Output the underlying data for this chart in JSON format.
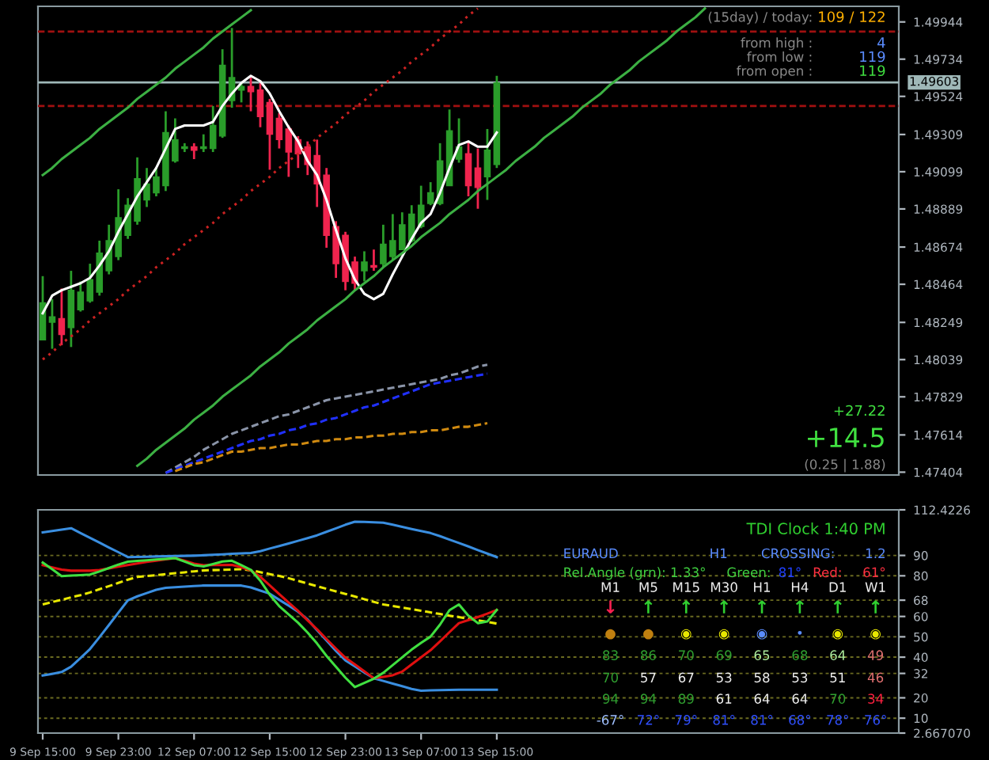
{
  "chart_data": [
    {
      "type": "candlestick",
      "categories": [
        null,
        null,
        null,
        null,
        null,
        null,
        null,
        null,
        null,
        null,
        null,
        null,
        null,
        null,
        null,
        null,
        null,
        null,
        null,
        null,
        null,
        null,
        null,
        null,
        null,
        null,
        null,
        null,
        null,
        null,
        null,
        null,
        null,
        null,
        null,
        null,
        null,
        null,
        null,
        null,
        null,
        null,
        null,
        null,
        null,
        null,
        null,
        null,
        null,
        null,
        null,
        null,
        null,
        null,
        null,
        null,
        null,
        null,
        null,
        null,
        null,
        null,
        null,
        null,
        null,
        null,
        null,
        null,
        null,
        null,
        null,
        null,
        null,
        null,
        null,
        null,
        null,
        null,
        null,
        null,
        null,
        null,
        null,
        null,
        null,
        null,
        null,
        null,
        null,
        null,
        null
      ],
      "ohlc": [
        [
          1.4815,
          1.4851,
          1.4815,
          1.4836
        ],
        [
          1.4825,
          1.4838,
          1.481,
          1.4828
        ],
        [
          1.4827,
          1.4844,
          1.4812,
          1.4818
        ],
        [
          1.4822,
          1.4854,
          1.4811,
          1.4843
        ],
        [
          1.4832,
          1.4848,
          1.4831,
          1.4842
        ],
        [
          1.4837,
          1.4858,
          1.4836,
          1.4849
        ],
        [
          1.4842,
          1.4871,
          1.484,
          1.4864
        ],
        [
          1.4854,
          1.488,
          1.4852,
          1.4871
        ],
        [
          1.4862,
          1.49,
          1.486,
          1.4884
        ],
        [
          1.4874,
          1.4895,
          1.4872,
          1.4891
        ],
        [
          1.4882,
          1.4918,
          1.488,
          1.4906
        ],
        [
          1.4894,
          1.4912,
          1.489,
          1.4903
        ],
        [
          1.4898,
          1.4912,
          1.4896,
          1.4907
        ],
        [
          1.4902,
          1.4944,
          1.4899,
          1.4932
        ],
        [
          1.4916,
          1.494,
          1.4915,
          1.4928
        ],
        [
          1.4923,
          1.4926,
          1.4921,
          1.4924
        ],
        [
          1.4924,
          1.4926,
          1.4917,
          1.4922
        ],
        [
          1.4923,
          1.4931,
          1.4921,
          1.4924
        ],
        [
          1.4923,
          1.4947,
          1.4921,
          1.4936
        ],
        [
          1.493,
          1.4979,
          1.4929,
          1.497
        ],
        [
          1.495,
          1.4991,
          1.4946,
          1.4963
        ],
        [
          1.4956,
          1.496,
          1.4949,
          1.4958
        ],
        [
          1.4958,
          1.4964,
          1.4944,
          1.4955
        ],
        [
          1.4956,
          1.496,
          1.4935,
          1.4941
        ],
        [
          1.4949,
          1.4951,
          1.4911,
          1.4931
        ],
        [
          1.494,
          1.4943,
          1.4923,
          1.4928
        ],
        [
          1.4934,
          1.4936,
          1.4907,
          1.4921
        ],
        [
          1.4928,
          1.493,
          1.4912,
          1.492
        ],
        [
          1.4924,
          1.4927,
          1.4908,
          1.4914
        ],
        [
          1.4919,
          1.4928,
          1.489,
          1.4903
        ],
        [
          1.4908,
          1.4912,
          1.4867,
          1.4874
        ],
        [
          1.4879,
          1.4882,
          1.485,
          1.4858
        ],
        [
          1.4874,
          1.4876,
          1.4843,
          1.4848
        ],
        [
          1.4859,
          1.4862,
          1.4843,
          1.4847
        ],
        [
          1.4854,
          1.4865,
          1.4848,
          1.4859
        ],
        [
          1.4857,
          1.4866,
          1.4854,
          1.4856
        ],
        [
          1.4858,
          1.488,
          1.4856,
          1.4869
        ],
        [
          1.4862,
          1.4886,
          1.486,
          1.4871
        ],
        [
          1.4866,
          1.4887,
          1.4866,
          1.488
        ],
        [
          1.4871,
          1.4891,
          1.487,
          1.4886
        ],
        [
          1.4879,
          1.4902,
          1.4878,
          1.4891
        ],
        [
          1.4892,
          1.4904,
          1.4891,
          1.4898
        ],
        [
          1.4892,
          1.4926,
          1.4891,
          1.4916
        ],
        [
          1.4902,
          1.4945,
          1.4902,
          1.4933
        ],
        [
          1.4917,
          1.494,
          1.4915,
          1.4924
        ],
        [
          1.492,
          1.4927,
          1.4896,
          1.4902
        ],
        [
          1.4912,
          1.4923,
          1.4889,
          1.4901
        ],
        [
          1.4907,
          1.4934,
          1.4894,
          1.4922
        ],
        [
          1.4914,
          1.4964,
          1.4912,
          1.496
        ],
        null,
        null,
        null,
        null,
        null,
        null,
        null,
        null,
        null,
        null,
        null,
        null,
        null,
        null,
        null,
        null,
        null,
        null,
        null,
        null,
        null,
        null,
        null,
        null,
        null,
        null,
        null,
        null,
        null,
        null,
        null,
        null,
        null,
        null,
        null,
        null,
        null,
        null,
        null,
        null,
        null,
        null
      ],
      "colors": [
        "#2a9d2a",
        "#2a9d2a",
        "#f0244e",
        "#2a9d2a",
        "#2a9d2a",
        "#2a9d2a",
        "#2a9d2a",
        "#2a9d2a",
        "#2a9d2a",
        "#2a9d2a",
        "#2a9d2a",
        "#2a9d2a",
        "#2a9d2a",
        "#2a9d2a",
        "#2a9d2a",
        "#2a9d2a",
        "#f0244e",
        "#2a9d2a",
        "#2a9d2a",
        "#2a9d2a",
        "#2a9d2a",
        "#2a9d2a",
        "#f0244e",
        "#f0244e",
        "#f0244e",
        "#f0244e",
        "#f0244e",
        "#f0244e",
        "#f0244e",
        "#f0244e",
        "#f0244e",
        "#f0244e",
        "#f0244e",
        "#f0244e",
        "#2a9d2a",
        "#f0244e",
        "#2a9d2a",
        "#2a9d2a",
        "#2a9d2a",
        "#2a9d2a",
        "#2a9d2a",
        "#2a9d2a",
        "#2a9d2a",
        "#2a9d2a",
        "#2a9d2a",
        "#f0244e",
        "#f0244e",
        "#2a9d2a",
        "#2a9d2a",
        null,
        null,
        null,
        null,
        null,
        null,
        null,
        null,
        null,
        null,
        null,
        null,
        null,
        null,
        null,
        null,
        null,
        null,
        null,
        null,
        null,
        null,
        null,
        null,
        null,
        null,
        null,
        null,
        null,
        null,
        null,
        null,
        null,
        null,
        null,
        null,
        null,
        null,
        null,
        null,
        null,
        null
      ],
      "series": [
        {
          "type": "line",
          "color": "#ffffff",
          "values": [
            1.483,
            1.484,
            1.4843,
            1.4845,
            1.4847,
            1.485,
            1.4857,
            1.4865,
            1.4876,
            1.4886,
            1.4896,
            1.4904,
            1.4912,
            1.4923,
            1.4934,
            1.4936,
            1.4936,
            1.4936,
            1.4938,
            1.4947,
            1.4954,
            1.496,
            1.4964,
            1.4961,
            1.4954,
            1.4944,
            1.4935,
            1.4927,
            1.4916,
            1.4908,
            1.4894,
            1.4877,
            1.4861,
            1.4849,
            1.4841,
            1.4838,
            1.4841,
            1.4852,
            1.4862,
            1.4872,
            1.4881,
            1.4886,
            1.4898,
            1.4912,
            1.4925,
            1.4927,
            1.4924,
            1.4924,
            1.4932,
            null,
            null,
            null,
            null,
            null,
            null,
            null,
            null,
            null,
            null,
            null,
            null,
            null,
            null,
            null,
            null,
            null,
            null,
            null,
            null,
            null,
            null,
            null,
            null,
            null,
            null,
            null,
            null,
            null,
            null,
            null,
            null,
            null,
            null,
            null,
            null,
            null,
            null,
            null,
            null,
            null,
            null
          ]
        },
        {
          "type": "line",
          "color": "#3cb043",
          "line_style": "solid",
          "values": [
            1.4908,
            1.4912,
            1.4917,
            1.4921,
            1.4925,
            1.4929,
            1.4934,
            1.4938,
            1.4942,
            1.4946,
            1.4951,
            1.4955,
            1.4959,
            1.4963,
            1.4968,
            1.4972,
            1.4976,
            1.498,
            1.4985,
            1.4989,
            1.4993,
            1.4997,
            1.5001,
            null,
            null,
            null,
            null,
            null,
            null,
            null,
            null,
            null,
            null,
            null,
            null,
            null,
            null,
            null,
            null,
            null,
            null,
            null,
            null,
            null,
            null,
            null,
            null,
            null,
            null,
            null,
            null,
            null,
            null,
            null,
            null,
            null,
            null,
            null,
            null,
            null,
            null,
            null,
            null,
            null,
            null,
            null,
            null,
            null,
            null,
            null,
            null,
            null,
            null,
            null,
            null,
            null,
            null,
            null,
            null,
            null,
            null,
            null,
            null,
            null,
            null,
            null,
            null,
            null,
            null,
            null,
            null
          ]
        },
        {
          "type": "line",
          "color": "#3cb043",
          "line_style": "solid",
          "values": [
            null,
            null,
            null,
            null,
            null,
            null,
            null,
            null,
            null,
            null,
            1.4744,
            1.4748,
            1.4753,
            1.4757,
            1.4761,
            1.4765,
            1.477,
            1.4774,
            1.4778,
            1.4783,
            1.4787,
            1.4791,
            1.4795,
            1.48,
            1.4804,
            1.4808,
            1.4813,
            1.4817,
            1.4821,
            1.4826,
            1.483,
            1.4834,
            1.4838,
            1.4843,
            1.4847,
            1.4851,
            1.4856,
            1.486,
            1.4864,
            1.4868,
            1.4873,
            1.4877,
            1.4881,
            1.4886,
            1.489,
            1.4894,
            1.4899,
            1.4903,
            1.4907,
            1.4911,
            1.4916,
            1.492,
            1.4924,
            1.4929,
            1.4933,
            1.4937,
            1.4941,
            1.4946,
            1.495,
            1.4954,
            1.4959,
            1.4963,
            1.4967,
            1.4972,
            1.4976,
            1.498,
            1.4984,
            1.4989,
            1.4993,
            1.4997,
            1.5002,
            null,
            null,
            null,
            null,
            null,
            null,
            null,
            null,
            null,
            null,
            null,
            null,
            null,
            null,
            null,
            null,
            null,
            null,
            null,
            null
          ]
        },
        {
          "type": "line",
          "color": "#cc2222",
          "line_style": "dotted",
          "values": [
            1.4804,
            1.4808,
            1.4813,
            1.4817,
            1.4821,
            1.4826,
            1.483,
            1.4834,
            1.4838,
            1.4843,
            1.4847,
            1.4851,
            1.4856,
            1.486,
            1.4864,
            1.4869,
            1.4873,
            1.4877,
            1.4881,
            1.4886,
            1.489,
            1.4894,
            1.4899,
            1.4903,
            1.4907,
            1.4912,
            1.4916,
            1.492,
            1.4924,
            1.4929,
            1.4933,
            1.4937,
            1.4942,
            1.4946,
            1.495,
            1.4955,
            1.4959,
            1.4963,
            1.4967,
            1.4972,
            1.4976,
            1.498,
            1.4985,
            1.4989,
            1.4993,
            1.4998,
            1.5002,
            null,
            null,
            null,
            null,
            null,
            null,
            null,
            null,
            null,
            null,
            null,
            null,
            null,
            null,
            null,
            null,
            null,
            null,
            null,
            null,
            null,
            null,
            null,
            null,
            null,
            null,
            null,
            null,
            null,
            null,
            null,
            null,
            null,
            null,
            null,
            null,
            null,
            null,
            null,
            null,
            null,
            null,
            null,
            null
          ]
        },
        {
          "type": "line",
          "color": "#8a94a8",
          "line_style": "dashed",
          "values": [
            null,
            null,
            null,
            null,
            null,
            null,
            null,
            null,
            null,
            null,
            null,
            null,
            null,
            1.474,
            1.4743,
            1.4746,
            1.4749,
            1.4753,
            1.4756,
            1.4759,
            1.4762,
            1.4764,
            1.4766,
            1.4768,
            1.477,
            1.4772,
            1.4773,
            1.4775,
            1.4777,
            1.4779,
            1.4781,
            1.4782,
            1.4783,
            1.4784,
            1.4785,
            1.4786,
            1.4787,
            1.4788,
            1.4789,
            1.479,
            1.4791,
            1.4792,
            1.4793,
            1.4795,
            1.4796,
            1.4798,
            1.48,
            1.4801,
            null,
            null,
            null,
            null,
            null,
            null,
            null,
            null,
            null,
            null,
            null,
            null,
            null,
            null,
            null,
            null,
            null,
            null,
            null,
            null,
            null,
            null,
            null,
            null,
            null,
            null,
            null,
            null,
            null,
            null,
            null,
            null,
            null,
            null,
            null,
            null,
            null,
            null,
            null,
            null,
            null,
            null,
            null
          ]
        },
        {
          "type": "line",
          "color": "#2030ff",
          "line_style": "dashed",
          "values": [
            null,
            null,
            null,
            null,
            null,
            null,
            null,
            null,
            null,
            null,
            null,
            null,
            null,
            1.474,
            1.4742,
            1.4744,
            1.4746,
            1.4748,
            1.475,
            1.4752,
            1.4754,
            1.4756,
            1.4758,
            1.4759,
            1.4761,
            1.4762,
            1.4764,
            1.4765,
            1.4767,
            1.4768,
            1.477,
            1.4771,
            1.4773,
            1.4775,
            1.4777,
            1.4778,
            1.478,
            1.4782,
            1.4784,
            1.4786,
            1.4788,
            1.479,
            1.4791,
            1.4792,
            1.4793,
            1.4794,
            1.4795,
            1.4796,
            null,
            null,
            null,
            null,
            null,
            null,
            null,
            null,
            null,
            null,
            null,
            null,
            null,
            null,
            null,
            null,
            null,
            null,
            null,
            null,
            null,
            null,
            null,
            null,
            null,
            null,
            null,
            null,
            null,
            null,
            null,
            null,
            null,
            null,
            null,
            null,
            null,
            null,
            null,
            null,
            null,
            null,
            null
          ]
        },
        {
          "type": "line",
          "color": "#d08a10",
          "line_style": "dashed",
          "values": [
            null,
            null,
            null,
            null,
            null,
            null,
            null,
            null,
            null,
            null,
            null,
            null,
            null,
            null,
            1.4741,
            1.4743,
            1.4745,
            1.4746,
            1.4748,
            1.475,
            1.4752,
            1.4752,
            1.4753,
            1.4754,
            1.4754,
            1.4755,
            1.4756,
            1.4756,
            1.4757,
            1.4758,
            1.4758,
            1.4759,
            1.4759,
            1.476,
            1.476,
            1.4761,
            1.4761,
            1.4762,
            1.4762,
            1.4763,
            1.4763,
            1.4764,
            1.4764,
            1.4765,
            1.4766,
            1.4766,
            1.4767,
            1.4768,
            null,
            null,
            null,
            null,
            null,
            null,
            null,
            null,
            null,
            null,
            null,
            null,
            null,
            null,
            null,
            null,
            null,
            null,
            null,
            null,
            null,
            null,
            null,
            null,
            null,
            null,
            null,
            null,
            null,
            null,
            null,
            null,
            null,
            null,
            null,
            null,
            null,
            null,
            null,
            null,
            null,
            null,
            null
          ]
        }
      ],
      "ref_lines": [
        {
          "axis": "y",
          "value": 1.4989,
          "color": "#a01010",
          "line_style": "dashed"
        },
        {
          "axis": "y",
          "value": 1.4947,
          "color": "#a01010",
          "line_style": "dashed"
        },
        {
          "axis": "y",
          "value": 1.49603,
          "label": "1.49603",
          "color": "#9fb8b8",
          "line_style": "solid"
        }
      ],
      "ylim": [
        1.47388,
        1.50032
      ],
      "yticks": [
        1.49944,
        1.49734,
        1.49524,
        1.49309,
        1.49099,
        1.48889,
        1.48674,
        1.48464,
        1.48249,
        1.48039,
        1.47829,
        1.47614,
        1.47404
      ],
      "tick_labels": "y",
      "annotations": [
        "(15day) / today:",
        "109 / 122",
        "from high :",
        "4",
        "from low :",
        "119",
        "from open :",
        "119",
        "+27.22",
        "+14.5",
        "(0.25 | 1.88)"
      ]
    },
    {
      "type": "line",
      "categories": [
        "9 Sep 15:00",
        null,
        null,
        null,
        null,
        null,
        null,
        null,
        "9 Sep 23:00",
        null,
        null,
        null,
        null,
        null,
        null,
        null,
        "12 Sep 07:00",
        null,
        null,
        null,
        null,
        null,
        null,
        null,
        "12 Sep 15:00",
        null,
        null,
        null,
        null,
        null,
        null,
        null,
        "12 Sep 23:00",
        null,
        null,
        null,
        null,
        null,
        null,
        null,
        "13 Sep 07:00",
        null,
        null,
        null,
        null,
        null,
        null,
        null,
        "13 Sep 15:00",
        null,
        null,
        null,
        null,
        null,
        null,
        null,
        null,
        null,
        null,
        null,
        null,
        null,
        null,
        null,
        null,
        null,
        null,
        null,
        null,
        null,
        null,
        null,
        null,
        null,
        null,
        null,
        null,
        null,
        null,
        null,
        null,
        null,
        null,
        null,
        null,
        null,
        null,
        null,
        null,
        null,
        null
      ],
      "series": [
        {
          "color": "#3a8ee0",
          "values": [
            101.3,
            102.0,
            102.7,
            103.4,
            101.0,
            98.7,
            96.3,
            93.9,
            91.6,
            89.2,
            89.3,
            89.4,
            89.5,
            89.6,
            89.7,
            89.8,
            89.9,
            90.1,
            90.3,
            90.5,
            90.8,
            91.0,
            91.2,
            92.1,
            93.4,
            94.6,
            95.9,
            97.2,
            98.5,
            99.9,
            101.6,
            103.3,
            105.1,
            106.6,
            106.5,
            106.3,
            106.1,
            105.1,
            104.1,
            103.0,
            102.0,
            101.0,
            99.5,
            97.8,
            96.1,
            94.4,
            92.6,
            90.9,
            89.2,
            null,
            null,
            null,
            null,
            null,
            null,
            null,
            null,
            null,
            null,
            null,
            null,
            null,
            null,
            null,
            null,
            null,
            null,
            null,
            null,
            null,
            null,
            null,
            null,
            null,
            null,
            null,
            null,
            null,
            null,
            null,
            null,
            null,
            null,
            null,
            null,
            null,
            null,
            null,
            null,
            null,
            null
          ]
        },
        {
          "color": "#3a8ee0",
          "values": [
            31.0,
            31.8,
            32.7,
            35.3,
            39.6,
            44.0,
            49.8,
            55.8,
            61.9,
            67.9,
            69.9,
            71.5,
            73.1,
            74.1,
            74.4,
            74.7,
            75.0,
            75.2,
            75.2,
            75.2,
            75.2,
            75.2,
            74.3,
            72.7,
            71.2,
            68.2,
            65.3,
            62.3,
            58.5,
            53.3,
            48.2,
            43.1,
            38.4,
            35.5,
            32.5,
            29.6,
            28.3,
            27.0,
            25.7,
            24.4,
            23.5,
            23.7,
            23.8,
            23.9,
            24.0,
            24.0,
            24.0,
            24.0,
            24.0,
            null,
            null,
            null,
            null,
            null,
            null,
            null,
            null,
            null,
            null,
            null,
            null,
            null,
            null,
            null,
            null,
            null,
            null,
            null,
            null,
            null,
            null,
            null,
            null,
            null,
            null,
            null,
            null,
            null,
            null,
            null,
            null,
            null,
            null,
            null,
            null,
            null,
            null,
            null,
            null,
            null,
            null
          ]
        },
        {
          "color": "#e8e800",
          "line_style": "dashed",
          "values": [
            65.9,
            67.1,
            68.2,
            69.4,
            70.5,
            71.8,
            73.4,
            74.9,
            76.5,
            78.1,
            79.4,
            79.9,
            80.3,
            80.8,
            81.3,
            81.7,
            82.2,
            82.6,
            82.8,
            82.9,
            83.1,
            83.2,
            82.7,
            81.8,
            80.8,
            79.9,
            78.8,
            77.5,
            76.2,
            74.9,
            73.6,
            72.3,
            71.1,
            69.8,
            68.5,
            67.2,
            65.9,
            65.1,
            64.4,
            63.6,
            62.8,
            62.0,
            61.2,
            60.4,
            59.7,
            58.9,
            58.1,
            57.3,
            56.5,
            null,
            null,
            null,
            null,
            null,
            null,
            null,
            null,
            null,
            null,
            null,
            null,
            null,
            null,
            null,
            null,
            null,
            null,
            null,
            null,
            null,
            null,
            null,
            null,
            null,
            null,
            null,
            null,
            null,
            null,
            null,
            null,
            null,
            null,
            null,
            null,
            null,
            null,
            null,
            null,
            null,
            null
          ]
        },
        {
          "color": "#e01010",
          "values": [
            85.2,
            84.1,
            83.0,
            82.5,
            82.5,
            82.5,
            82.8,
            83.6,
            84.5,
            85.3,
            86.1,
            86.8,
            87.4,
            88.1,
            88.7,
            87.4,
            86.0,
            85.2,
            85.3,
            85.3,
            85.4,
            84.2,
            82.6,
            79.5,
            75.3,
            71.0,
            66.8,
            62.7,
            58.1,
            53.7,
            48.9,
            44.2,
            39.7,
            36.4,
            33.0,
            29.6,
            30.3,
            31.1,
            32.9,
            36.4,
            39.9,
            43.4,
            47.8,
            52.3,
            56.7,
            58.2,
            59.7,
            61.4,
            63.2,
            null,
            null,
            null,
            null,
            null,
            null,
            null,
            null,
            null,
            null,
            null,
            null,
            null,
            null,
            null,
            null,
            null,
            null,
            null,
            null,
            null,
            null,
            null,
            null,
            null,
            null,
            null,
            null,
            null,
            null,
            null,
            null,
            null,
            null,
            null,
            null,
            null,
            null,
            null,
            null,
            null,
            null
          ]
        },
        {
          "color": "#40e040",
          "values": [
            86.5,
            83.2,
            79.8,
            80.1,
            80.3,
            80.6,
            82.1,
            83.8,
            85.5,
            86.9,
            87.3,
            87.6,
            88.0,
            88.3,
            88.7,
            87.0,
            85.2,
            84.6,
            85.8,
            87.0,
            87.4,
            85.2,
            82.9,
            77.6,
            70.7,
            65.1,
            61.0,
            56.9,
            52.1,
            46.7,
            40.6,
            35.3,
            29.9,
            25.3,
            27.3,
            29.4,
            32.3,
            36.1,
            39.9,
            43.7,
            47.0,
            50.1,
            56.0,
            63.1,
            65.9,
            60.4,
            56.7,
            57.5,
            63.2,
            null,
            null,
            null,
            null,
            null,
            null,
            null,
            null,
            null,
            null,
            null,
            null,
            null,
            null,
            null,
            null,
            null,
            null,
            null,
            null,
            null,
            null,
            null,
            null,
            null,
            null,
            null,
            null,
            null,
            null,
            null,
            null,
            null,
            null,
            null,
            null,
            null,
            null,
            null,
            null,
            null,
            null
          ]
        }
      ],
      "ylim": [
        2.66707,
        112.4226
      ],
      "yticks": [
        {
          "value": 112.4226,
          "label": "112.4226"
        },
        90,
        80,
        68,
        60,
        50,
        40,
        32,
        20,
        10,
        {
          "value": 2.66707,
          "label": "2.667070"
        }
      ],
      "grid": "y",
      "annotations": [
        "TDI Clock 1:40 PM",
        "EURAUD",
        "H1",
        "CROSSING:",
        "1.2",
        "Rel.Angle (grn): 1.33°",
        "Green:",
        "81°",
        "Red:",
        "61°",
        "M1",
        "M5",
        "M15",
        "M30",
        "H1",
        "H4",
        "D1",
        "W1",
        "↓",
        "↑",
        "↑",
        "↑",
        "↑",
        "↑",
        "↑",
        "↑",
        "●",
        "●",
        "◉",
        "◉",
        "◉",
        "•",
        "◉",
        "◉",
        "83",
        "86",
        "70",
        "69",
        "65",
        "68",
        "64",
        "49",
        "70",
        "57",
        "67",
        "53",
        "58",
        "53",
        "51",
        "46",
        "94",
        "94",
        "89",
        "61",
        "64",
        "64",
        "70",
        "34",
        "-67°",
        "72°",
        "79°",
        "81°",
        "81°",
        "68°",
        "78°",
        "76°"
      ]
    }
  ]
}
